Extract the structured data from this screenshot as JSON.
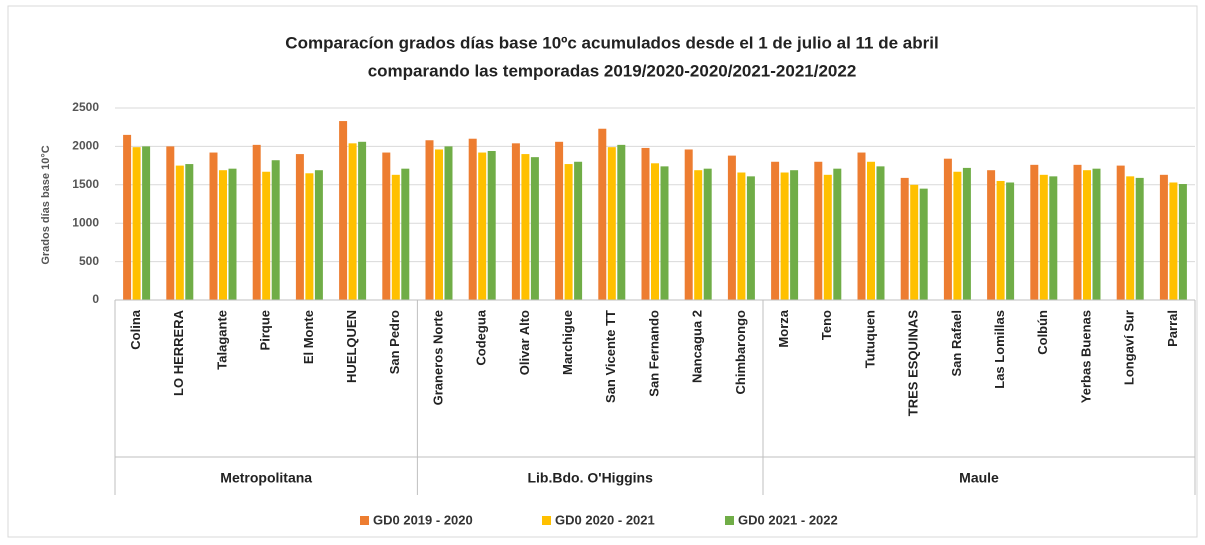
{
  "chart_data": {
    "type": "bar",
    "title": "Comparacíon grados días base 10ºc acumulados desde el 1 de julio al 11 de abril",
    "subtitle": "comparando las temporadas 2019/2020-2020/2021-2021/2022",
    "y_label": "Grados días  base 10°C",
    "groups": [
      {
        "name": "Metropolitana",
        "categories": [
          "Colina",
          "LO HERRERA",
          "Talagante",
          "Pirque",
          "El Monte",
          "HUELQUEN",
          "San Pedro"
        ]
      },
      {
        "name": "Lib.Bdo. O'Higgins",
        "categories": [
          "Graneros Norte",
          "Codegua",
          "Olivar Alto",
          "Marchigue",
          "San Vicente TT",
          "San Fernando",
          "Nancagua 2",
          "Chimbarongo"
        ]
      },
      {
        "name": "Maule",
        "categories": [
          "Morza",
          "Teno",
          "Tutuquen",
          "TRES ESQUINAS",
          "San Rafael",
          "Las Lomillas",
          "Colbún",
          "Yerbas Buenas",
          "Longaví Sur",
          "Parral"
        ]
      }
    ],
    "series": [
      {
        "name": "GD0 2019 - 2020",
        "color": "#ed7d31",
        "values": [
          2150,
          2000,
          1920,
          2020,
          1900,
          2330,
          1920,
          2080,
          2100,
          2040,
          2060,
          2230,
          1980,
          1960,
          1880,
          1800,
          1800,
          1920,
          1590,
          1840,
          1690,
          1760,
          1760,
          1750,
          1630
        ]
      },
      {
        "name": "GD0 2020 - 2021",
        "color": "#ffc000",
        "values": [
          1990,
          1750,
          1690,
          1670,
          1650,
          2040,
          1630,
          1960,
          1920,
          1900,
          1770,
          1990,
          1780,
          1690,
          1660,
          1660,
          1630,
          1800,
          1500,
          1670,
          1550,
          1630,
          1690,
          1610,
          1530
        ]
      },
      {
        "name": "GD0 2021 - 2022",
        "color": "#70ad47",
        "values": [
          2000,
          1770,
          1710,
          1820,
          1690,
          2060,
          1710,
          2000,
          1940,
          1860,
          1800,
          2020,
          1740,
          1710,
          1610,
          1690,
          1710,
          1740,
          1450,
          1720,
          1530,
          1610,
          1710,
          1590,
          1510
        ]
      }
    ],
    "ylim": [
      0,
      2500
    ],
    "yticks": [
      0,
      500,
      1000,
      1500,
      2000,
      2500
    ],
    "grid": true,
    "legend": "bottom"
  }
}
